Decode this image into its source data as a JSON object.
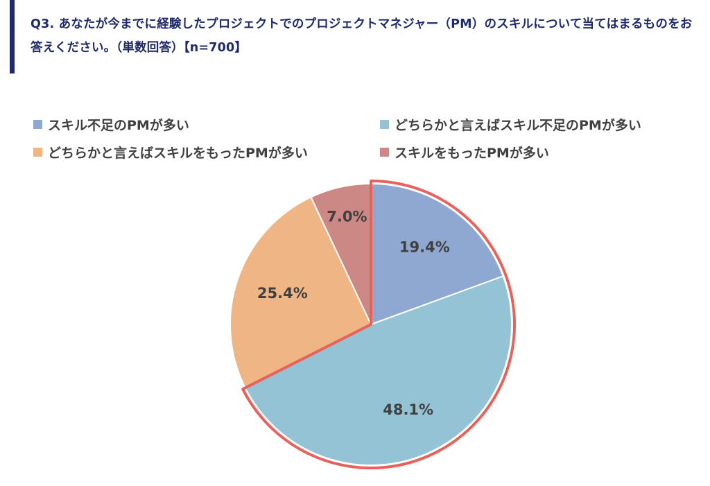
{
  "header": {
    "question": "Q3. あなたが今までに経験したプロジェクトでのプロジェクトマネジャー（PM）のスキルについて当てはまるものをお答えください。（単数回答）【n=700】",
    "accent_color": "#1f2a6b"
  },
  "chart_data": {
    "type": "pie",
    "title": "",
    "start_angle_deg": 0,
    "direction": "clockwise",
    "legend_position": "top",
    "slices": [
      {
        "name": "スキル不足のPMが多い",
        "value": 19.4,
        "label": "19.4%",
        "color": "#8ea8d2"
      },
      {
        "name": "どちらかと言えばスキル不足のPMが多い",
        "value": 48.1,
        "label": "48.1%",
        "color": "#93c3d5"
      },
      {
        "name": "どちらかと言えばスキルをもったPMが多い",
        "value": 25.4,
        "label": "25.4%",
        "color": "#efb584"
      },
      {
        "name": "スキルをもったPMが多い",
        "value": 7.0,
        "label": "7.0%",
        "color": "#cc8884"
      }
    ],
    "highlight": {
      "slices": [
        "スキル不足のPMが多い",
        "どちらかと言えばスキル不足のPMが多い"
      ],
      "outline_color": "#e8615a"
    }
  }
}
